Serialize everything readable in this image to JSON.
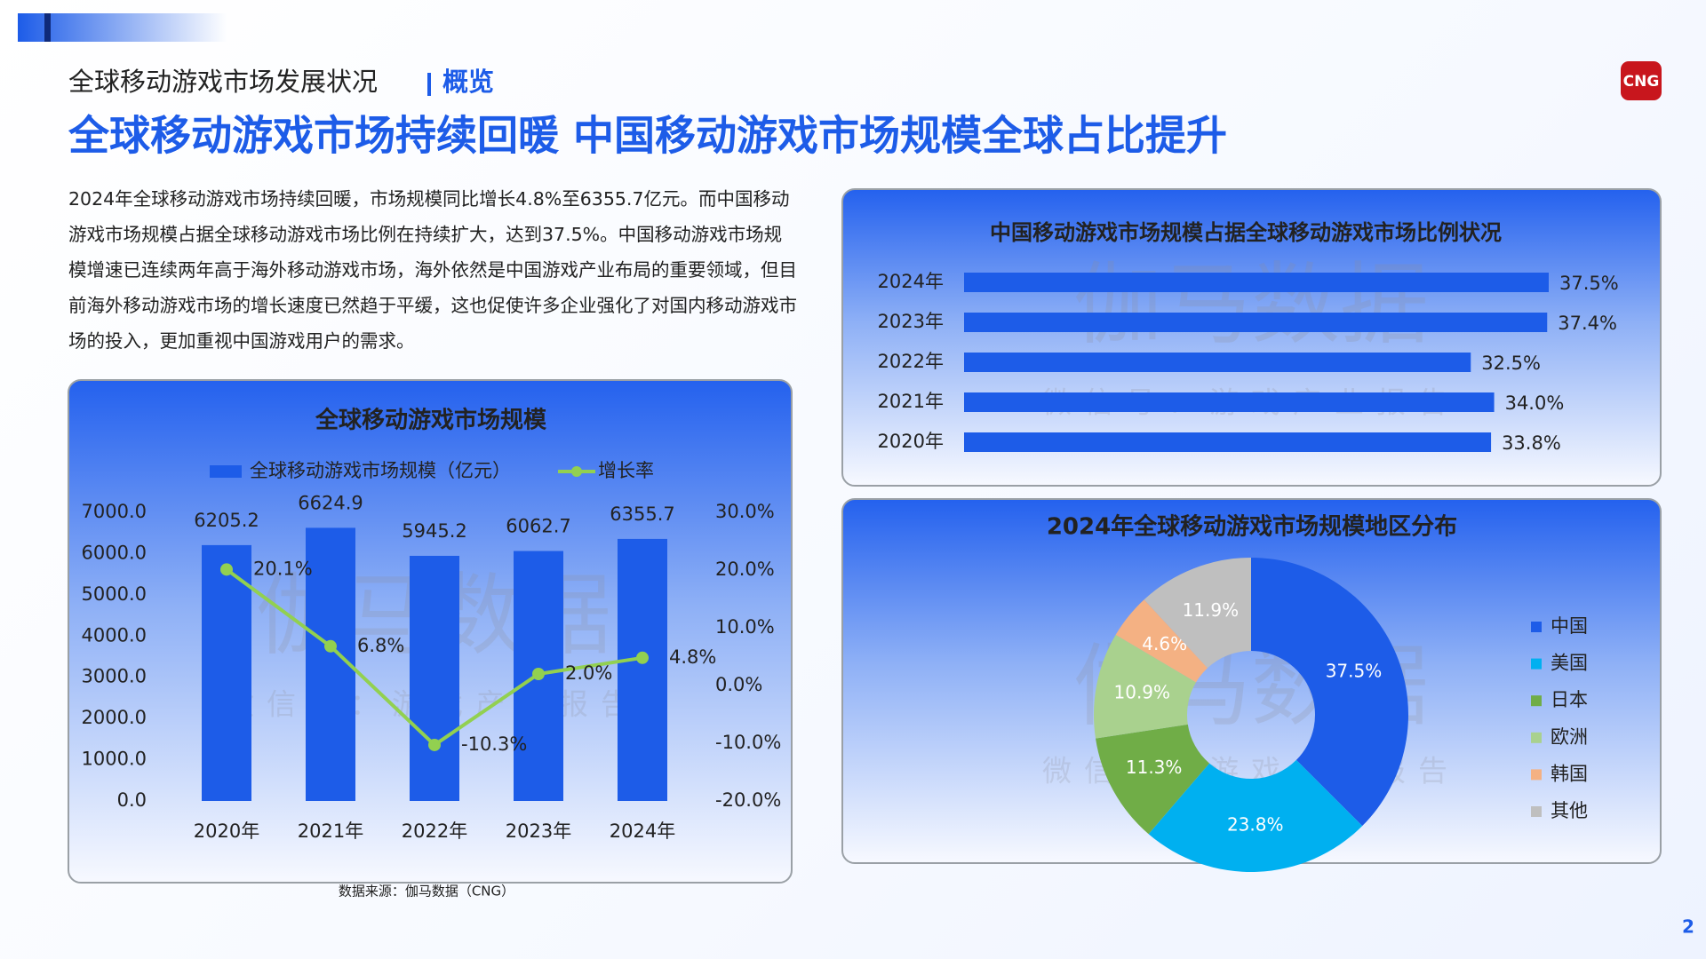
{
  "header": {
    "section": "全球移动游戏市场发展状况",
    "tag": "概览",
    "logo": "CNG",
    "title": "全球移动游戏市场持续回暖 中国移动游戏市场规模全球占比提升"
  },
  "summary": "2024年全球移动游戏市场持续回暖，市场规模同比增长4.8%至6355.7亿元。而中国移动游戏市场规模占据全球移动游戏市场比例在持续扩大，达到37.5%。中国移动游戏市场规模增速已连续两年高于海外移动游戏市场，海外依然是中国游戏产业布局的重要领域，但目前海外移动游戏市场的增长速度已然趋于平缓，这也促使许多企业强化了对国内移动游戏市场的投入，更加重视中国游戏用户的需求。",
  "watermark": {
    "name": "伽马数据",
    "account": "微信号：游戏产业报告"
  },
  "chart_data": [
    {
      "type": "bar",
      "title": "全球移动游戏市场规模",
      "categories": [
        "2020年",
        "2021年",
        "2022年",
        "2023年",
        "2024年"
      ],
      "series": [
        {
          "name": "全球移动游戏市场规模（亿元）",
          "type": "bar",
          "color": "#1d5ce8",
          "values": [
            6205.2,
            6624.9,
            5945.2,
            6062.7,
            6355.7
          ]
        },
        {
          "name": "增长率",
          "type": "line",
          "axis": "y2",
          "color": "#92d050",
          "values": [
            20.1,
            6.8,
            -10.3,
            2.0,
            4.8
          ],
          "value_labels": [
            "20.1%",
            "6.8%",
            "-10.3%",
            "2.0%",
            "4.8%"
          ]
        }
      ],
      "ylim": [
        0,
        7000
      ],
      "yticks": [
        {
          "value": 0,
          "label": "0.0"
        },
        {
          "value": 1000,
          "label": "1000.0"
        },
        {
          "value": 2000,
          "label": "2000.0"
        },
        {
          "value": 3000,
          "label": "3000.0"
        },
        {
          "value": 4000,
          "label": "4000.0"
        },
        {
          "value": 5000,
          "label": "5000.0"
        },
        {
          "value": 6000,
          "label": "6000.0"
        },
        {
          "value": 7000,
          "label": "7000.0"
        }
      ],
      "y2lim": [
        -20,
        30
      ],
      "y2ticks": [
        {
          "value": -20,
          "label": "-20.0%"
        },
        {
          "value": -10,
          "label": "-10.0%"
        },
        {
          "value": 0,
          "label": "0.0%"
        },
        {
          "value": 10,
          "label": "10.0%"
        },
        {
          "value": 20,
          "label": "20.0%"
        },
        {
          "value": 30,
          "label": "30.0%"
        }
      ],
      "grid": false
    },
    {
      "type": "hbar",
      "title": "中国移动游戏市场规模占据全球移动游戏市场比例状况",
      "categories": [
        "2024年",
        "2023年",
        "2022年",
        "2021年",
        "2020年"
      ],
      "values": [
        37.5,
        37.4,
        32.5,
        34.0,
        33.8
      ],
      "value_labels": [
        "37.5%",
        "37.4%",
        "32.5%",
        "34.0%",
        "33.8%"
      ],
      "color": "#1d5ce8"
    },
    {
      "type": "donut",
      "title": "2024年全球移动游戏市场规模地区分布",
      "categories": [
        "中国",
        "美国",
        "日本",
        "欧洲",
        "韩国",
        "其他"
      ],
      "values": [
        37.5,
        23.8,
        11.3,
        10.9,
        4.6,
        11.9
      ],
      "value_labels": [
        "37.5%",
        "23.8%",
        "11.3%",
        "10.9%",
        "4.6%",
        "11.9%"
      ],
      "colors": [
        "#1d5ce8",
        "#00b0f0",
        "#70ad47",
        "#a9d18e",
        "#f4b183",
        "#bfbfbf"
      ],
      "legend": "right"
    }
  ],
  "source": "数据来源：伽马数据（CNG）",
  "page_number": "2"
}
